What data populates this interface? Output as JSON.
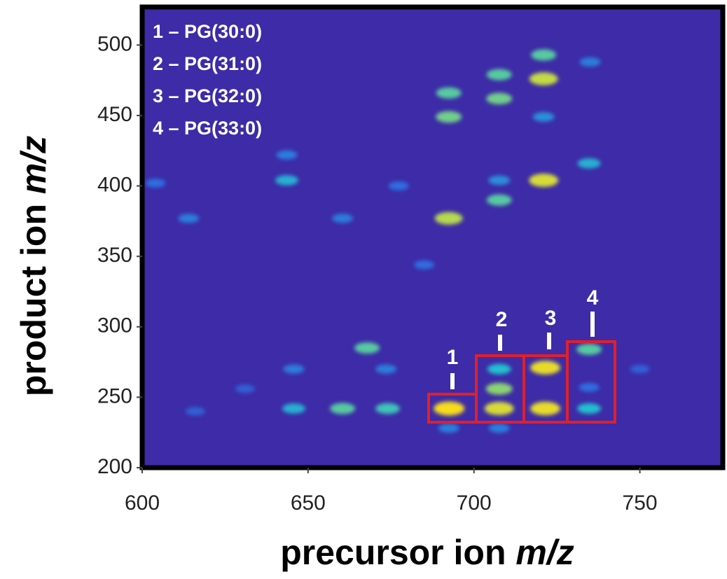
{
  "chart_data": {
    "type": "heatmap",
    "xlabel": [
      "precursor ion ",
      "m/z"
    ],
    "ylabel": [
      "product ion ",
      "m/z"
    ],
    "xlim": [
      600,
      775
    ],
    "xticks": [
      600,
      650,
      700,
      750
    ],
    "ylim": [
      200,
      527
    ],
    "yticks": [
      200,
      250,
      300,
      350,
      400,
      450,
      500
    ],
    "background_color": "#3d2ba7",
    "colormap": [
      "#3d2ba7",
      "#2f6ee0",
      "#22c0cf",
      "#a6d95a",
      "#f7dc1f"
    ],
    "legend_entries": [
      "1 – PG(30:0)",
      "2 – PG(31:0)",
      "3 – PG(32:0)",
      "4 – PG(33:0)"
    ],
    "box_labels": [
      "1",
      "2",
      "3",
      "4"
    ],
    "points": [
      {
        "x": 692.5,
        "y": 242,
        "intensity": 1.0
      },
      {
        "x": 707.6,
        "y": 242,
        "intensity": 0.9
      },
      {
        "x": 707.6,
        "y": 256,
        "intensity": 0.7
      },
      {
        "x": 707.6,
        "y": 270,
        "intensity": 0.5
      },
      {
        "x": 721.5,
        "y": 242,
        "intensity": 0.95
      },
      {
        "x": 721.5,
        "y": 271,
        "intensity": 0.95
      },
      {
        "x": 734.7,
        "y": 284,
        "intensity": 0.6
      },
      {
        "x": 734.7,
        "y": 242,
        "intensity": 0.5
      },
      {
        "x": 667.8,
        "y": 285,
        "intensity": 0.6
      },
      {
        "x": 660.4,
        "y": 242,
        "intensity": 0.6
      },
      {
        "x": 674,
        "y": 242,
        "intensity": 0.55
      },
      {
        "x": 645.7,
        "y": 242,
        "intensity": 0.45
      },
      {
        "x": 692.4,
        "y": 377,
        "intensity": 0.8
      },
      {
        "x": 692.4,
        "y": 449,
        "intensity": 0.65
      },
      {
        "x": 692.4,
        "y": 466,
        "intensity": 0.6
      },
      {
        "x": 707.6,
        "y": 479,
        "intensity": 0.6
      },
      {
        "x": 707.6,
        "y": 462,
        "intensity": 0.65
      },
      {
        "x": 707.6,
        "y": 390,
        "intensity": 0.6
      },
      {
        "x": 707.6,
        "y": 404,
        "intensity": 0.35
      },
      {
        "x": 721,
        "y": 493,
        "intensity": 0.6
      },
      {
        "x": 721,
        "y": 476,
        "intensity": 0.85
      },
      {
        "x": 721,
        "y": 404,
        "intensity": 0.9
      },
      {
        "x": 721,
        "y": 449,
        "intensity": 0.35
      },
      {
        "x": 734.7,
        "y": 416,
        "intensity": 0.45
      },
      {
        "x": 643.6,
        "y": 404,
        "intensity": 0.45
      },
      {
        "x": 643.6,
        "y": 422,
        "intensity": 0.3
      },
      {
        "x": 614,
        "y": 377,
        "intensity": 0.3
      },
      {
        "x": 604,
        "y": 402,
        "intensity": 0.25
      },
      {
        "x": 660.4,
        "y": 377,
        "intensity": 0.3
      },
      {
        "x": 685,
        "y": 344,
        "intensity": 0.25
      },
      {
        "x": 692.4,
        "y": 228,
        "intensity": 0.3
      },
      {
        "x": 707.6,
        "y": 228,
        "intensity": 0.3
      },
      {
        "x": 735,
        "y": 488,
        "intensity": 0.3
      },
      {
        "x": 677.3,
        "y": 400,
        "intensity": 0.25
      },
      {
        "x": 645.7,
        "y": 270,
        "intensity": 0.3
      },
      {
        "x": 673.5,
        "y": 270,
        "intensity": 0.3
      },
      {
        "x": 734.7,
        "y": 257,
        "intensity": 0.25
      },
      {
        "x": 750,
        "y": 270,
        "intensity": 0.2
      },
      {
        "x": 631,
        "y": 256,
        "intensity": 0.2
      },
      {
        "x": 616,
        "y": 240,
        "intensity": 0.2
      }
    ]
  }
}
